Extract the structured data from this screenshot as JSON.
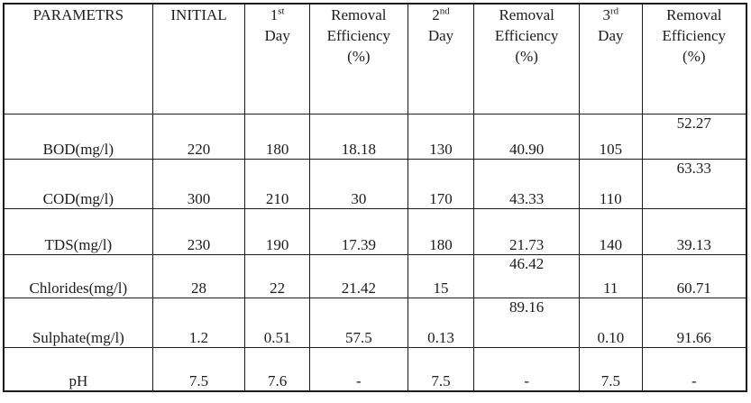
{
  "table": {
    "columns": [
      {
        "label": "PARAMETRS"
      },
      {
        "label": "INITIAL"
      },
      {
        "num": "1",
        "sup": "st",
        "label": "Day"
      },
      {
        "l1": "Removal",
        "l2": "Efficiency",
        "l3": "(%)"
      },
      {
        "num": "2",
        "sup": "nd",
        "label": "Day"
      },
      {
        "l1": "Removal",
        "l2": "Efficiency",
        "l3": "(%)"
      },
      {
        "num": "3",
        "sup": "rd",
        "label": "Day"
      },
      {
        "l1": "Removal",
        "l2": "Efficiency",
        "l3": "(%)"
      }
    ],
    "rows": [
      {
        "param": "BOD(mg/l)",
        "values": [
          "220",
          "180",
          "18.18",
          "130",
          "40.90",
          "105",
          "52.27"
        ]
      },
      {
        "param": "COD(mg/l)",
        "values": [
          "300",
          "210",
          "30",
          "170",
          "43.33",
          "110",
          "63.33"
        ]
      },
      {
        "param": "TDS(mg/l)",
        "values": [
          "230",
          "190",
          "17.39",
          "180",
          "21.73",
          "140",
          "39.13"
        ]
      },
      {
        "param": "Chlorides(mg/l)",
        "values": [
          "28",
          "22",
          "21.42",
          "15",
          "46.42",
          "11",
          "60.71"
        ]
      },
      {
        "param": "Sulphate(mg/l)",
        "values": [
          "1.2",
          "0.51",
          "57.5",
          "0.13",
          "89.16",
          "0.10",
          "91.66"
        ]
      },
      {
        "param": "pH",
        "values": [
          "7.5",
          "7.6",
          "-",
          "7.5",
          "-",
          "7.5",
          "-"
        ]
      }
    ]
  }
}
